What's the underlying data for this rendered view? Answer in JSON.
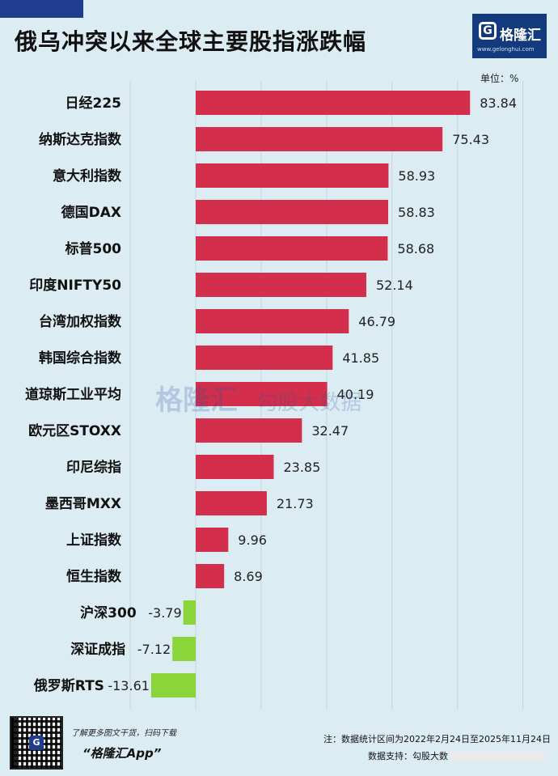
{
  "header": {
    "title": "俄乌冲突以来全球主要股指涨跌幅",
    "logo_name": "格隆汇",
    "logo_url": "www.gelonghui.com",
    "unit": "单位：%"
  },
  "watermark": {
    "logo": "格隆汇",
    "text": "勾股大数据",
    "url": "www.gogudata.com"
  },
  "footer": {
    "tagline": "了解更多图文干货，扫码下载",
    "app": "“格隆汇App”",
    "note": "注：数据统计区间为2022年2月24日至2025年11月24日",
    "support": "数据支持：勾股大数"
  },
  "colors": {
    "positive": "#d32f4c",
    "negative": "#8ad63a",
    "background": "#dcecf3",
    "brand": "#123a7c"
  },
  "chart_data": {
    "type": "bar",
    "orientation": "horizontal",
    "title": "俄乌冲突以来全球主要股指涨跌幅",
    "unit": "%",
    "categories": [
      "日经225",
      "纳斯达克指数",
      "意大利指数",
      "德国DAX",
      "标普500",
      "印度NIFTY50",
      "台湾加权指数",
      "韩国综合指数",
      "道琼斯工业平均",
      "欧元区STOXX",
      "印尼综指",
      "墨西哥MXX",
      "上证指数",
      "恒生指数",
      "沪深300",
      "深证成指",
      "俄罗斯RTS"
    ],
    "values": [
      83.84,
      75.43,
      58.93,
      58.83,
      58.68,
      52.14,
      46.79,
      41.85,
      40.19,
      32.47,
      23.85,
      21.73,
      9.96,
      8.69,
      -3.79,
      -7.12,
      -13.61
    ],
    "labels": [
      "83.84",
      "75.43",
      "58.93",
      "58.83",
      "58.68",
      "52.14",
      "46.79",
      "41.85",
      "40.19",
      "32.47",
      "23.85",
      "21.73",
      "9.96",
      "8.69",
      "-3.79",
      "-7.12",
      "-13.61"
    ],
    "xlim": [
      -20,
      100
    ],
    "grid": true,
    "legend": "none"
  }
}
